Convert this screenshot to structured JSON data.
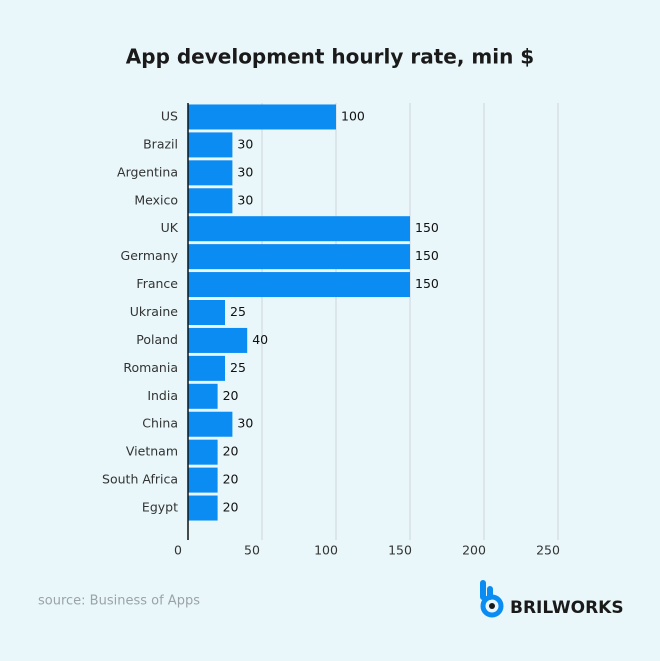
{
  "chart_data": {
    "type": "bar",
    "orientation": "horizontal",
    "title": "App development hourly rate, min $",
    "categories": [
      "US",
      "Brazil",
      "Argentina",
      "Mexico",
      "UK",
      "Germany",
      "France",
      "Ukraine",
      "Poland",
      "Romania",
      "India",
      "China",
      "Vietnam",
      "South Africa",
      "Egypt"
    ],
    "values": [
      100,
      30,
      30,
      30,
      150,
      150,
      150,
      25,
      40,
      25,
      20,
      30,
      20,
      20,
      20
    ],
    "color": "#0b8cf2",
    "xlim": [
      0,
      250
    ],
    "xticks": [
      0,
      50,
      100,
      150,
      200,
      250
    ],
    "grid": true,
    "source": "source: Business of Apps",
    "brand": "BRILWORKS"
  }
}
